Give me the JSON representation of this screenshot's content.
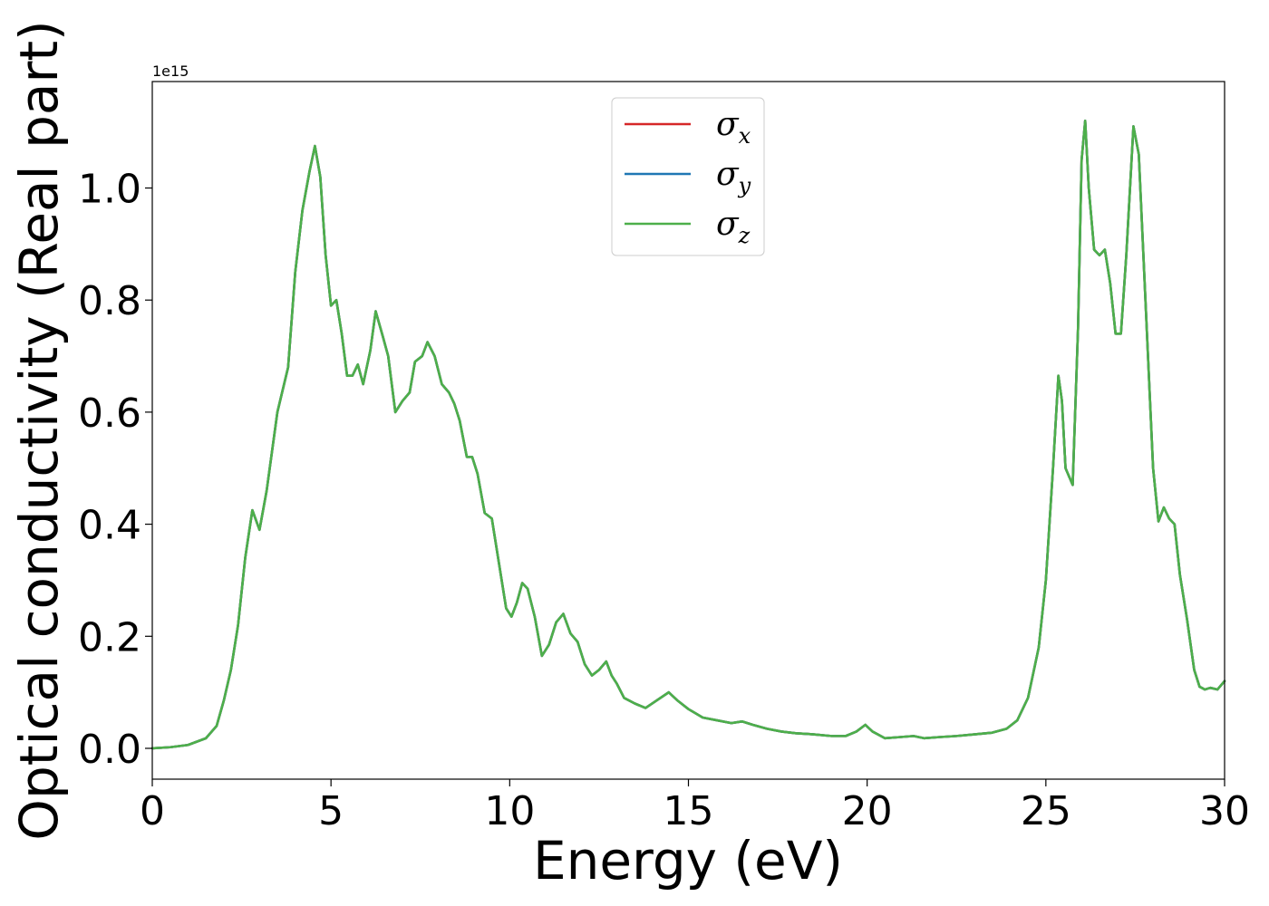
{
  "chart_data": {
    "type": "line",
    "title": "",
    "xlabel": "Energy (eV)",
    "ylabel": "Optical conductivity (Real part)",
    "y_offset_label": "1e15",
    "xlim": [
      0,
      30
    ],
    "ylim": [
      -0.055,
      1.19
    ],
    "xticks": [
      0,
      5,
      10,
      15,
      20,
      25,
      30
    ],
    "xtick_labels": [
      "0",
      "5",
      "10",
      "15",
      "20",
      "25",
      "30"
    ],
    "yticks": [
      0.0,
      0.2,
      0.4,
      0.6,
      0.8,
      1.0
    ],
    "ytick_labels": [
      "0.0",
      "0.2",
      "0.4",
      "0.6",
      "0.8",
      "1.0"
    ],
    "grid": false,
    "legend_position": "top-center",
    "series": [
      {
        "name": "σx",
        "symbol": "σ",
        "subscript": "x",
        "color": "#d62728",
        "x": [
          0,
          0.5,
          1.0,
          1.5,
          1.8,
          2.0,
          2.2,
          2.4,
          2.6,
          2.8,
          3.0,
          3.2,
          3.5,
          3.8,
          4.0,
          4.2,
          4.4,
          4.55,
          4.7,
          4.85,
          5.0,
          5.15,
          5.3,
          5.45,
          5.6,
          5.75,
          5.9,
          6.1,
          6.25,
          6.45,
          6.6,
          6.8,
          7.0,
          7.2,
          7.35,
          7.55,
          7.7,
          7.9,
          8.1,
          8.3,
          8.45,
          8.6,
          8.8,
          8.95,
          9.1,
          9.3,
          9.5,
          9.7,
          9.9,
          10.05,
          10.2,
          10.35,
          10.5,
          10.7,
          10.9,
          11.1,
          11.3,
          11.5,
          11.7,
          11.9,
          12.1,
          12.3,
          12.5,
          12.7,
          12.85,
          13.0,
          13.2,
          13.5,
          13.8,
          14.1,
          14.45,
          14.7,
          15.0,
          15.4,
          15.8,
          16.2,
          16.5,
          16.8,
          17.2,
          17.6,
          18.0,
          18.5,
          19.0,
          19.4,
          19.7,
          19.95,
          20.15,
          20.5,
          20.9,
          21.3,
          21.6,
          22.0,
          22.5,
          23.0,
          23.5,
          23.9,
          24.2,
          24.5,
          24.8,
          25.0,
          25.2,
          25.35,
          25.45,
          25.55,
          25.75,
          25.9,
          26.0,
          26.1,
          26.2,
          26.35,
          26.5,
          26.65,
          26.8,
          26.95,
          27.1,
          27.25,
          27.45,
          27.6,
          27.8,
          28.0,
          28.15,
          28.3,
          28.45,
          28.6,
          28.75,
          28.95,
          29.15,
          29.3,
          29.45,
          29.6,
          29.8,
          30.0
        ],
        "y": [
          0.0,
          0.002,
          0.006,
          0.018,
          0.04,
          0.085,
          0.14,
          0.22,
          0.34,
          0.425,
          0.39,
          0.46,
          0.6,
          0.68,
          0.85,
          0.96,
          1.03,
          1.075,
          1.02,
          0.88,
          0.79,
          0.8,
          0.74,
          0.665,
          0.665,
          0.685,
          0.65,
          0.71,
          0.78,
          0.735,
          0.7,
          0.6,
          0.62,
          0.635,
          0.69,
          0.7,
          0.725,
          0.7,
          0.65,
          0.635,
          0.615,
          0.585,
          0.52,
          0.52,
          0.49,
          0.42,
          0.41,
          0.33,
          0.25,
          0.235,
          0.26,
          0.295,
          0.285,
          0.235,
          0.165,
          0.185,
          0.225,
          0.24,
          0.205,
          0.19,
          0.15,
          0.13,
          0.14,
          0.155,
          0.13,
          0.115,
          0.09,
          0.08,
          0.072,
          0.085,
          0.1,
          0.085,
          0.07,
          0.055,
          0.05,
          0.045,
          0.048,
          0.042,
          0.035,
          0.03,
          0.027,
          0.025,
          0.022,
          0.022,
          0.03,
          0.042,
          0.03,
          0.018,
          0.02,
          0.022,
          0.018,
          0.02,
          0.022,
          0.025,
          0.028,
          0.035,
          0.05,
          0.09,
          0.18,
          0.3,
          0.5,
          0.665,
          0.62,
          0.5,
          0.47,
          0.75,
          1.05,
          1.12,
          1.0,
          0.89,
          0.88,
          0.89,
          0.83,
          0.74,
          0.74,
          0.88,
          1.11,
          1.06,
          0.78,
          0.5,
          0.405,
          0.43,
          0.41,
          0.4,
          0.31,
          0.23,
          0.14,
          0.11,
          0.105,
          0.108,
          0.105,
          0.12
        ]
      },
      {
        "name": "σy",
        "symbol": "σ",
        "subscript": "y",
        "color": "#1f77b4",
        "x": [
          0,
          0.5,
          1.0,
          1.5,
          1.8,
          2.0,
          2.2,
          2.4,
          2.6,
          2.8,
          3.0,
          3.2,
          3.5,
          3.8,
          4.0,
          4.2,
          4.4,
          4.55,
          4.7,
          4.85,
          5.0,
          5.15,
          5.3,
          5.45,
          5.6,
          5.75,
          5.9,
          6.1,
          6.25,
          6.45,
          6.6,
          6.8,
          7.0,
          7.2,
          7.35,
          7.55,
          7.7,
          7.9,
          8.1,
          8.3,
          8.45,
          8.6,
          8.8,
          8.95,
          9.1,
          9.3,
          9.5,
          9.7,
          9.9,
          10.05,
          10.2,
          10.35,
          10.5,
          10.7,
          10.9,
          11.1,
          11.3,
          11.5,
          11.7,
          11.9,
          12.1,
          12.3,
          12.5,
          12.7,
          12.85,
          13.0,
          13.2,
          13.5,
          13.8,
          14.1,
          14.45,
          14.7,
          15.0,
          15.4,
          15.8,
          16.2,
          16.5,
          16.8,
          17.2,
          17.6,
          18.0,
          18.5,
          19.0,
          19.4,
          19.7,
          19.95,
          20.15,
          20.5,
          20.9,
          21.3,
          21.6,
          22.0,
          22.5,
          23.0,
          23.5,
          23.9,
          24.2,
          24.5,
          24.8,
          25.0,
          25.2,
          25.35,
          25.45,
          25.55,
          25.75,
          25.9,
          26.0,
          26.1,
          26.2,
          26.35,
          26.5,
          26.65,
          26.8,
          26.95,
          27.1,
          27.25,
          27.45,
          27.6,
          27.8,
          28.0,
          28.15,
          28.3,
          28.45,
          28.6,
          28.75,
          28.95,
          29.15,
          29.3,
          29.45,
          29.6,
          29.8,
          30.0
        ],
        "y": [
          0.0,
          0.002,
          0.006,
          0.018,
          0.04,
          0.085,
          0.14,
          0.22,
          0.34,
          0.425,
          0.39,
          0.46,
          0.6,
          0.68,
          0.85,
          0.96,
          1.03,
          1.075,
          1.02,
          0.88,
          0.79,
          0.8,
          0.74,
          0.665,
          0.665,
          0.685,
          0.65,
          0.71,
          0.78,
          0.735,
          0.7,
          0.6,
          0.62,
          0.635,
          0.69,
          0.7,
          0.725,
          0.7,
          0.65,
          0.635,
          0.615,
          0.585,
          0.52,
          0.52,
          0.49,
          0.42,
          0.41,
          0.33,
          0.25,
          0.235,
          0.26,
          0.295,
          0.285,
          0.235,
          0.165,
          0.185,
          0.225,
          0.24,
          0.205,
          0.19,
          0.15,
          0.13,
          0.14,
          0.155,
          0.13,
          0.115,
          0.09,
          0.08,
          0.072,
          0.085,
          0.1,
          0.085,
          0.07,
          0.055,
          0.05,
          0.045,
          0.048,
          0.042,
          0.035,
          0.03,
          0.027,
          0.025,
          0.022,
          0.022,
          0.03,
          0.042,
          0.03,
          0.018,
          0.02,
          0.022,
          0.018,
          0.02,
          0.022,
          0.025,
          0.028,
          0.035,
          0.05,
          0.09,
          0.18,
          0.3,
          0.5,
          0.665,
          0.62,
          0.5,
          0.47,
          0.75,
          1.05,
          1.12,
          1.0,
          0.89,
          0.88,
          0.89,
          0.83,
          0.74,
          0.74,
          0.88,
          1.11,
          1.06,
          0.78,
          0.5,
          0.405,
          0.43,
          0.41,
          0.4,
          0.31,
          0.23,
          0.14,
          0.11,
          0.105,
          0.108,
          0.105,
          0.12
        ]
      },
      {
        "name": "σz",
        "symbol": "σ",
        "subscript": "z",
        "color": "#4daf4a",
        "x": [
          0,
          0.5,
          1.0,
          1.5,
          1.8,
          2.0,
          2.2,
          2.4,
          2.6,
          2.8,
          3.0,
          3.2,
          3.5,
          3.8,
          4.0,
          4.2,
          4.4,
          4.55,
          4.7,
          4.85,
          5.0,
          5.15,
          5.3,
          5.45,
          5.6,
          5.75,
          5.9,
          6.1,
          6.25,
          6.45,
          6.6,
          6.8,
          7.0,
          7.2,
          7.35,
          7.55,
          7.7,
          7.9,
          8.1,
          8.3,
          8.45,
          8.6,
          8.8,
          8.95,
          9.1,
          9.3,
          9.5,
          9.7,
          9.9,
          10.05,
          10.2,
          10.35,
          10.5,
          10.7,
          10.9,
          11.1,
          11.3,
          11.5,
          11.7,
          11.9,
          12.1,
          12.3,
          12.5,
          12.7,
          12.85,
          13.0,
          13.2,
          13.5,
          13.8,
          14.1,
          14.45,
          14.7,
          15.0,
          15.4,
          15.8,
          16.2,
          16.5,
          16.8,
          17.2,
          17.6,
          18.0,
          18.5,
          19.0,
          19.4,
          19.7,
          19.95,
          20.15,
          20.5,
          20.9,
          21.3,
          21.6,
          22.0,
          22.5,
          23.0,
          23.5,
          23.9,
          24.2,
          24.5,
          24.8,
          25.0,
          25.2,
          25.35,
          25.45,
          25.55,
          25.75,
          25.9,
          26.0,
          26.1,
          26.2,
          26.35,
          26.5,
          26.65,
          26.8,
          26.95,
          27.1,
          27.25,
          27.45,
          27.6,
          27.8,
          28.0,
          28.15,
          28.3,
          28.45,
          28.6,
          28.75,
          28.95,
          29.15,
          29.3,
          29.45,
          29.6,
          29.8,
          30.0
        ],
        "y": [
          0.0,
          0.002,
          0.006,
          0.018,
          0.04,
          0.085,
          0.14,
          0.22,
          0.34,
          0.425,
          0.39,
          0.46,
          0.6,
          0.68,
          0.85,
          0.96,
          1.03,
          1.075,
          1.02,
          0.88,
          0.79,
          0.8,
          0.74,
          0.665,
          0.665,
          0.685,
          0.65,
          0.71,
          0.78,
          0.735,
          0.7,
          0.6,
          0.62,
          0.635,
          0.69,
          0.7,
          0.725,
          0.7,
          0.65,
          0.635,
          0.615,
          0.585,
          0.52,
          0.52,
          0.49,
          0.42,
          0.41,
          0.33,
          0.25,
          0.235,
          0.26,
          0.295,
          0.285,
          0.235,
          0.165,
          0.185,
          0.225,
          0.24,
          0.205,
          0.19,
          0.15,
          0.13,
          0.14,
          0.155,
          0.13,
          0.115,
          0.09,
          0.08,
          0.072,
          0.085,
          0.1,
          0.085,
          0.07,
          0.055,
          0.05,
          0.045,
          0.048,
          0.042,
          0.035,
          0.03,
          0.027,
          0.025,
          0.022,
          0.022,
          0.03,
          0.042,
          0.03,
          0.018,
          0.02,
          0.022,
          0.018,
          0.02,
          0.022,
          0.025,
          0.028,
          0.035,
          0.05,
          0.09,
          0.18,
          0.3,
          0.5,
          0.665,
          0.62,
          0.5,
          0.47,
          0.75,
          1.05,
          1.12,
          1.0,
          0.89,
          0.88,
          0.89,
          0.83,
          0.74,
          0.74,
          0.88,
          1.11,
          1.06,
          0.78,
          0.5,
          0.405,
          0.43,
          0.41,
          0.4,
          0.31,
          0.23,
          0.14,
          0.11,
          0.105,
          0.108,
          0.105,
          0.12
        ]
      }
    ]
  }
}
